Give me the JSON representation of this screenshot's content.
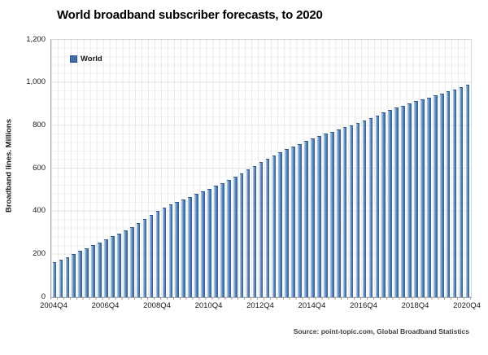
{
  "title": "World broadband subscriber forecasts, to 2020",
  "source_note": "Source: point-topic.com, Global Broadband Statistics",
  "legend": {
    "label": "World",
    "swatch_color": "#3f6fa8"
  },
  "colors": {
    "bar_main": "#4f81bd",
    "bar_light_edge": "#b7cee7",
    "bar_dark_edge": "#2f5b91",
    "gridline_minor": "#f1f1f1",
    "gridline_vertical": "#eaeaea",
    "axis_line": "#a6a6a6"
  },
  "chart_data": {
    "type": "bar",
    "title": "World broadband subscriber forecasts, to 2020",
    "series_name": "World",
    "xlabel": "",
    "ylabel": "Broadband lines. Millions",
    "ylim": [
      0,
      1200
    ],
    "ytick_interval": 200,
    "ytick_labels": [
      "0",
      "200",
      "400",
      "600",
      "800",
      "1,000",
      "1,200"
    ],
    "xtick_labels": [
      "2004Q4",
      "2006Q4",
      "2008Q4",
      "2010Q4",
      "2012Q4",
      "2014Q4",
      "2016Q4",
      "2018Q4",
      "2020Q4"
    ],
    "x_start": "2004Q4",
    "x_step": "quarter",
    "grid": true,
    "legend_position": "top-left-inside",
    "values": [
      158,
      171,
      184,
      198,
      211,
      225,
      239,
      252,
      266,
      280,
      294,
      308,
      322,
      341,
      361,
      380,
      400,
      414,
      428,
      441,
      453,
      465,
      478,
      490,
      502,
      515,
      529,
      543,
      557,
      574,
      591,
      608,
      625,
      641,
      656,
      671,
      686,
      700,
      712,
      724,
      736,
      747,
      758,
      768,
      778,
      789,
      799,
      810,
      820,
      832,
      844,
      857,
      869,
      880,
      890,
      900,
      910,
      919,
      928,
      937,
      946,
      956,
      966,
      977,
      988
    ]
  }
}
